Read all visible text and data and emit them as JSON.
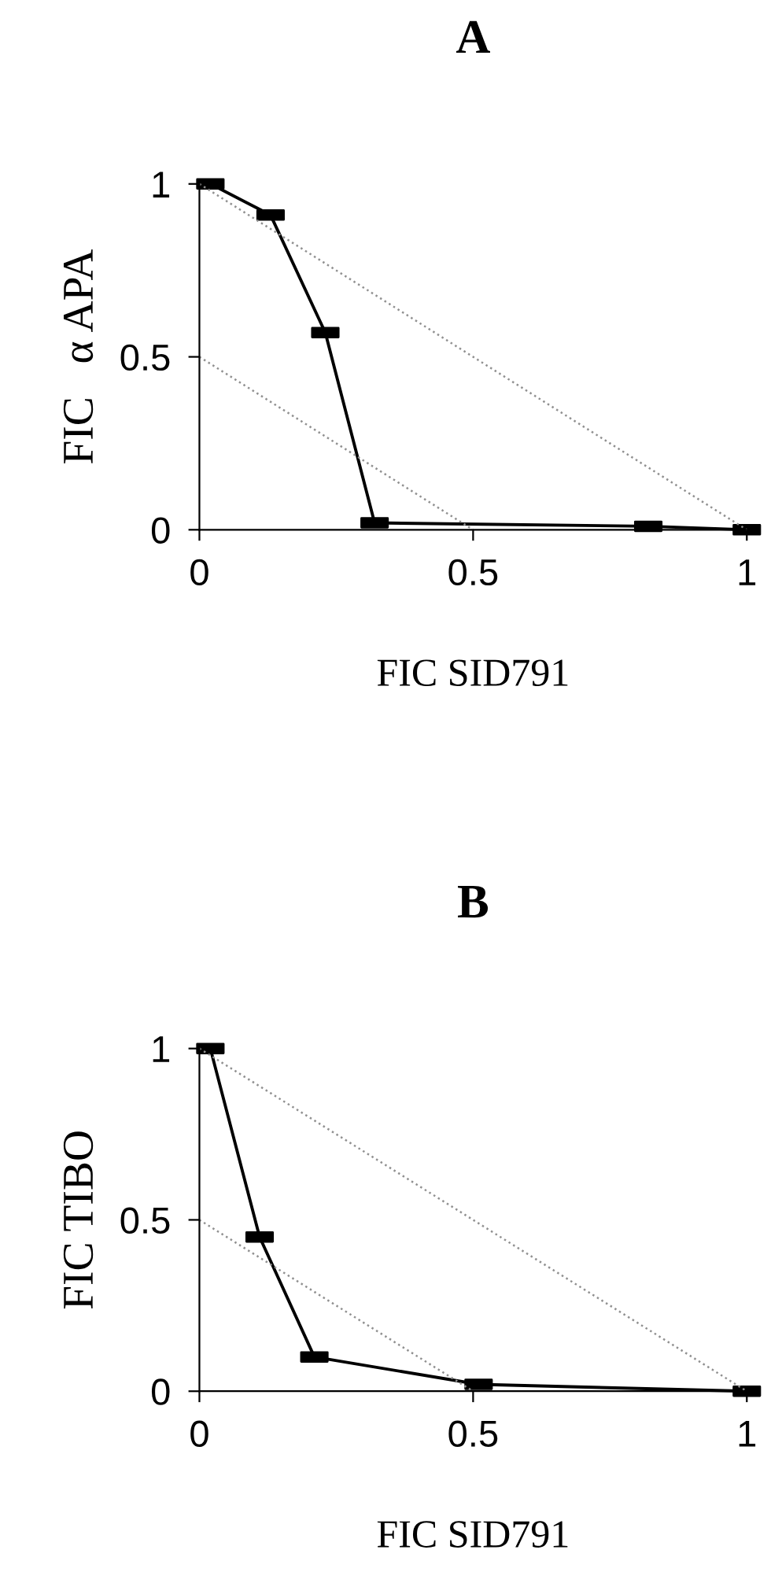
{
  "chart_data": [
    {
      "type": "line",
      "title": "A",
      "xlabel": "FIC SID791",
      "ylabel": "FIC   α APA",
      "xlim": [
        0,
        1
      ],
      "ylim": [
        0,
        1
      ],
      "xticks": [
        0,
        0.5,
        1
      ],
      "yticks": [
        0,
        0.5,
        1
      ],
      "grid": false,
      "series": [
        {
          "x": [
            0.02,
            0.13,
            0.23,
            0.32,
            0.82,
            1.0
          ],
          "values": [
            1.0,
            0.91,
            0.57,
            0.02,
            0.01,
            0.0
          ],
          "color": "#000000",
          "marker": "square",
          "line_style": "solid"
        },
        {
          "x": [
            0,
            1
          ],
          "values": [
            1,
            0
          ],
          "color": "#909090",
          "marker": "none",
          "line_style": "dotted"
        },
        {
          "x": [
            0,
            0.5
          ],
          "values": [
            0.5,
            0
          ],
          "color": "#909090",
          "marker": "none",
          "line_style": "dotted"
        }
      ]
    },
    {
      "type": "line",
      "title": "B",
      "xlabel": "FIC SID791",
      "ylabel": "FIC TIBO",
      "xlim": [
        0,
        1
      ],
      "ylim": [
        0,
        1
      ],
      "xticks": [
        0,
        0.5,
        1
      ],
      "yticks": [
        0,
        0.5,
        1
      ],
      "grid": false,
      "series": [
        {
          "x": [
            0.02,
            0.11,
            0.21,
            0.51,
            1.0
          ],
          "values": [
            1.0,
            0.45,
            0.1,
            0.02,
            0.0
          ],
          "color": "#000000",
          "marker": "square",
          "line_style": "solid"
        },
        {
          "x": [
            0,
            1
          ],
          "values": [
            1,
            0
          ],
          "color": "#909090",
          "marker": "none",
          "line_style": "dotted"
        },
        {
          "x": [
            0,
            0.5
          ],
          "values": [
            0.5,
            0
          ],
          "color": "#909090",
          "marker": "none",
          "line_style": "dotted"
        }
      ]
    }
  ]
}
